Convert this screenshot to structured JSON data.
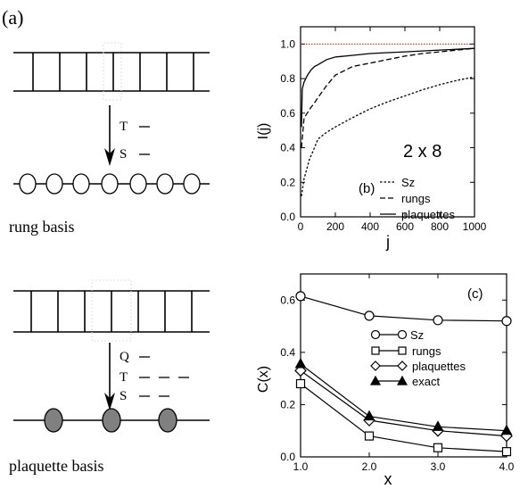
{
  "panel_a": {
    "label": "(a)",
    "rung_symbols": [
      "T",
      "S"
    ],
    "rung_caption": "rung basis",
    "plaquette_symbols": [
      "Q",
      "T",
      "S"
    ],
    "plaquette_caption": "plaquette basis"
  },
  "chart_data": [
    {
      "type": "line",
      "panel_label": "(b)",
      "annotation": "2 x 8",
      "xlabel": "j",
      "ylabel": "I(j)",
      "xlim": [
        0,
        1000
      ],
      "ylim": [
        0.0,
        1.1
      ],
      "xticks": [
        "0",
        "200",
        "400",
        "600",
        "800",
        "1000"
      ],
      "yticks": [
        "0.0",
        "0.2",
        "0.4",
        "0.6",
        "0.8",
        "1.0"
      ],
      "reference_line": {
        "y": 1.0,
        "color": "#dd0000"
      },
      "legend_position": "center-right",
      "series": [
        {
          "name": "Sz",
          "style": "dotted",
          "x": [
            5,
            20,
            50,
            80,
            100,
            150,
            200,
            300,
            400,
            500,
            600,
            700,
            800,
            900,
            1000
          ],
          "y": [
            0.12,
            0.22,
            0.33,
            0.4,
            0.45,
            0.49,
            0.52,
            0.575,
            0.625,
            0.665,
            0.7,
            0.735,
            0.765,
            0.79,
            0.81
          ]
        },
        {
          "name": "rungs",
          "style": "dashed",
          "x": [
            5,
            20,
            50,
            80,
            100,
            150,
            200,
            300,
            400,
            500,
            600,
            700,
            800,
            900,
            1000
          ],
          "y": [
            0.4,
            0.57,
            0.62,
            0.66,
            0.69,
            0.76,
            0.82,
            0.87,
            0.89,
            0.91,
            0.93,
            0.945,
            0.955,
            0.965,
            0.975
          ]
        },
        {
          "name": "plaquettes",
          "style": "solid",
          "x": [
            5,
            10,
            20,
            40,
            60,
            80,
            100,
            150,
            200,
            300,
            400,
            500,
            600,
            700,
            800,
            900,
            1000
          ],
          "y": [
            0.52,
            0.74,
            0.78,
            0.82,
            0.85,
            0.87,
            0.88,
            0.91,
            0.925,
            0.935,
            0.945,
            0.95,
            0.955,
            0.96,
            0.965,
            0.97,
            0.975
          ]
        }
      ]
    },
    {
      "type": "line",
      "panel_label": "(c)",
      "xlabel": "x",
      "ylabel": "C(x)",
      "xlim": [
        1.0,
        4.0
      ],
      "ylim": [
        0.0,
        0.7
      ],
      "xticks": [
        "1.0",
        "2.0",
        "3.0",
        "4.0"
      ],
      "yticks": [
        "0.0",
        "0.2",
        "0.4",
        "0.6"
      ],
      "legend_position": "center",
      "x": [
        1.0,
        2.0,
        3.0,
        4.0
      ],
      "series": [
        {
          "name": "Sz",
          "marker": "circle-open",
          "values": [
            0.615,
            0.54,
            0.523,
            0.52
          ]
        },
        {
          "name": "rungs",
          "marker": "square-open",
          "values": [
            0.28,
            0.08,
            0.035,
            0.02
          ]
        },
        {
          "name": "plaquettes",
          "marker": "diamond-open",
          "values": [
            0.33,
            0.14,
            0.1,
            0.08
          ]
        },
        {
          "name": "exact",
          "marker": "triangle-filled",
          "values": [
            0.355,
            0.155,
            0.115,
            0.1
          ]
        }
      ]
    }
  ]
}
